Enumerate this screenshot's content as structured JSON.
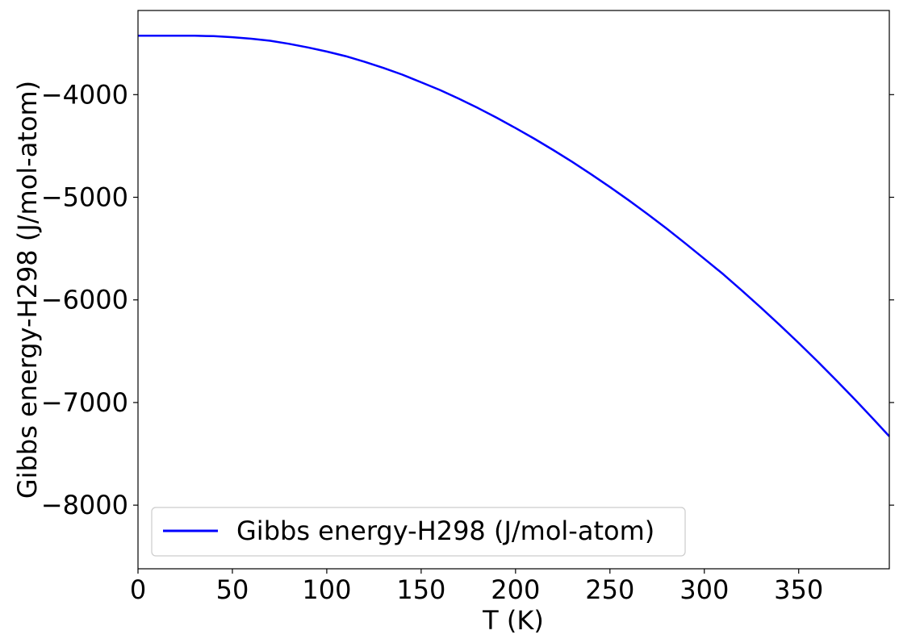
{
  "chart_data": {
    "type": "line",
    "title": "",
    "xlabel": "T (K)",
    "ylabel": "Gibbs energy-H298 (J/mol-atom)",
    "xlim": [
      0,
      398
    ],
    "ylim": [
      -8620,
      -3180
    ],
    "x_ticks": [
      0,
      50,
      100,
      150,
      200,
      250,
      300,
      350
    ],
    "x_tick_labels": [
      "0",
      "50",
      "100",
      "150",
      "200",
      "250",
      "300",
      "350"
    ],
    "y_ticks": [
      -8000,
      -7000,
      -6000,
      -5000,
      -4000
    ],
    "y_tick_labels": [
      "−8000",
      "−7000",
      "−6000",
      "−5000",
      "−4000"
    ],
    "grid": false,
    "legend_position": "lower-left",
    "series_color": "#0000ff",
    "series": [
      {
        "name": "Gibbs energy-H298 (J/mol-atom)",
        "x": [
          0,
          10,
          20,
          30,
          40,
          50,
          60,
          70,
          80,
          90,
          100,
          110,
          120,
          130,
          140,
          150,
          160,
          170,
          180,
          190,
          200,
          210,
          220,
          230,
          240,
          250,
          260,
          270,
          280,
          290,
          300,
          310,
          320,
          330,
          340,
          350,
          360,
          370,
          380,
          390,
          398
        ],
        "y": [
          -3425,
          -3425,
          -3425,
          -3426,
          -3430,
          -3440,
          -3455,
          -3475,
          -3505,
          -3540,
          -3580,
          -3625,
          -3680,
          -3740,
          -3805,
          -3880,
          -3955,
          -4040,
          -4130,
          -4225,
          -4325,
          -4430,
          -4540,
          -4655,
          -4775,
          -4900,
          -5030,
          -5165,
          -5305,
          -5450,
          -5600,
          -5750,
          -5910,
          -6075,
          -6245,
          -6420,
          -6600,
          -6785,
          -6975,
          -7170,
          -7330
        ]
      }
    ]
  }
}
